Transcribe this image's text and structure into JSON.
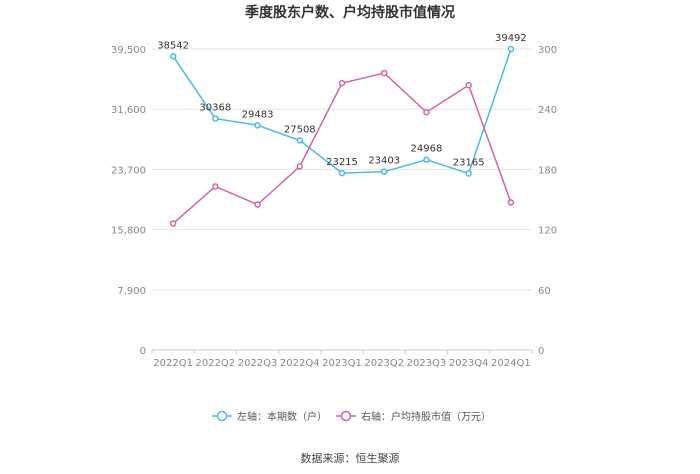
{
  "chart_data": {
    "type": "line",
    "title": "季度股东户数、户均持股市值情况",
    "categories": [
      "2022Q1",
      "2022Q2",
      "2022Q3",
      "2022Q4",
      "2023Q1",
      "2023Q2",
      "2023Q3",
      "2023Q4",
      "2024Q1"
    ],
    "series": [
      {
        "name": "左轴：本期数（户）",
        "axis": "left",
        "color": "#4db8e8",
        "values": [
          38542,
          30368,
          29483,
          27508,
          23215,
          23403,
          24968,
          23165,
          39492
        ],
        "labels": [
          "38542",
          "30368",
          "29483",
          "27508",
          "23215",
          "23403",
          "24968",
          "23165",
          "39492"
        ]
      },
      {
        "name": "右轴：户均持股市值（万元）",
        "axis": "right",
        "color": "#d264aa",
        "values": [
          126,
          163,
          145,
          183,
          266,
          276,
          237,
          264,
          147
        ]
      }
    ],
    "left_axis": {
      "min": 0,
      "max": 39500,
      "ticks": [
        0,
        7900,
        15800,
        23700,
        31600,
        39500
      ],
      "tick_labels": [
        "0",
        "7,900",
        "15,800",
        "23,700",
        "31,600",
        "39,500"
      ]
    },
    "right_axis": {
      "min": 0,
      "max": 300,
      "ticks": [
        0,
        60,
        120,
        180,
        240,
        300
      ],
      "tick_labels": [
        "0",
        "60",
        "120",
        "180",
        "240",
        "300"
      ]
    },
    "grid": true,
    "legend_position": "bottom",
    "source": "数据来源：恒生聚源"
  }
}
